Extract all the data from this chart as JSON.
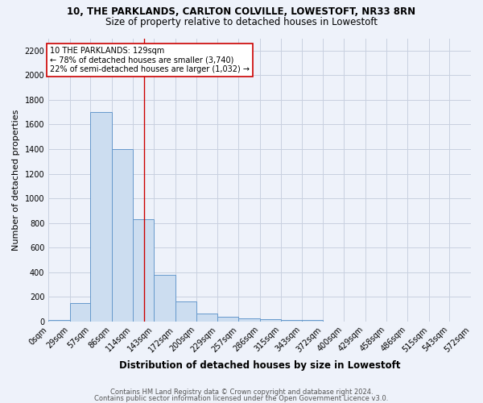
{
  "title": "10, THE PARKLANDS, CARLTON COLVILLE, LOWESTOFT, NR33 8RN",
  "subtitle": "Size of property relative to detached houses in Lowestoft",
  "xlabel": "Distribution of detached houses by size in Lowestoft",
  "ylabel": "Number of detached properties",
  "bar_edges": [
    0,
    29,
    57,
    86,
    114,
    143,
    172,
    200,
    229,
    257,
    286,
    315,
    343,
    372,
    400,
    429,
    458,
    486,
    515,
    543,
    572
  ],
  "bar_heights": [
    10,
    150,
    1700,
    1400,
    830,
    380,
    160,
    65,
    35,
    25,
    20,
    15,
    10,
    0,
    0,
    0,
    0,
    0,
    0,
    0
  ],
  "bar_color": "#ccddf0",
  "bar_edgecolor": "#6699cc",
  "property_size": 129,
  "vline_color": "#cc0000",
  "annotation_line1": "10 THE PARKLANDS: 129sqm",
  "annotation_line2": "← 78% of detached houses are smaller (3,740)",
  "annotation_line3": "22% of semi-detached houses are larger (1,032) →",
  "annotation_bbox_edgecolor": "#cc0000",
  "annotation_bbox_facecolor": "#ffffff",
  "ylim": [
    0,
    2300
  ],
  "yticks": [
    0,
    200,
    400,
    600,
    800,
    1000,
    1200,
    1400,
    1600,
    1800,
    2000,
    2200
  ],
  "grid_color": "#c8d0e0",
  "background_color": "#eef2fa",
  "footer_line1": "Contains HM Land Registry data © Crown copyright and database right 2024.",
  "footer_line2": "Contains public sector information licensed under the Open Government Licence v3.0.",
  "title_fontsize": 8.5,
  "subtitle_fontsize": 8.5,
  "xlabel_fontsize": 8.5,
  "ylabel_fontsize": 8,
  "tick_fontsize": 7,
  "annotation_fontsize": 7,
  "footer_fontsize": 6
}
